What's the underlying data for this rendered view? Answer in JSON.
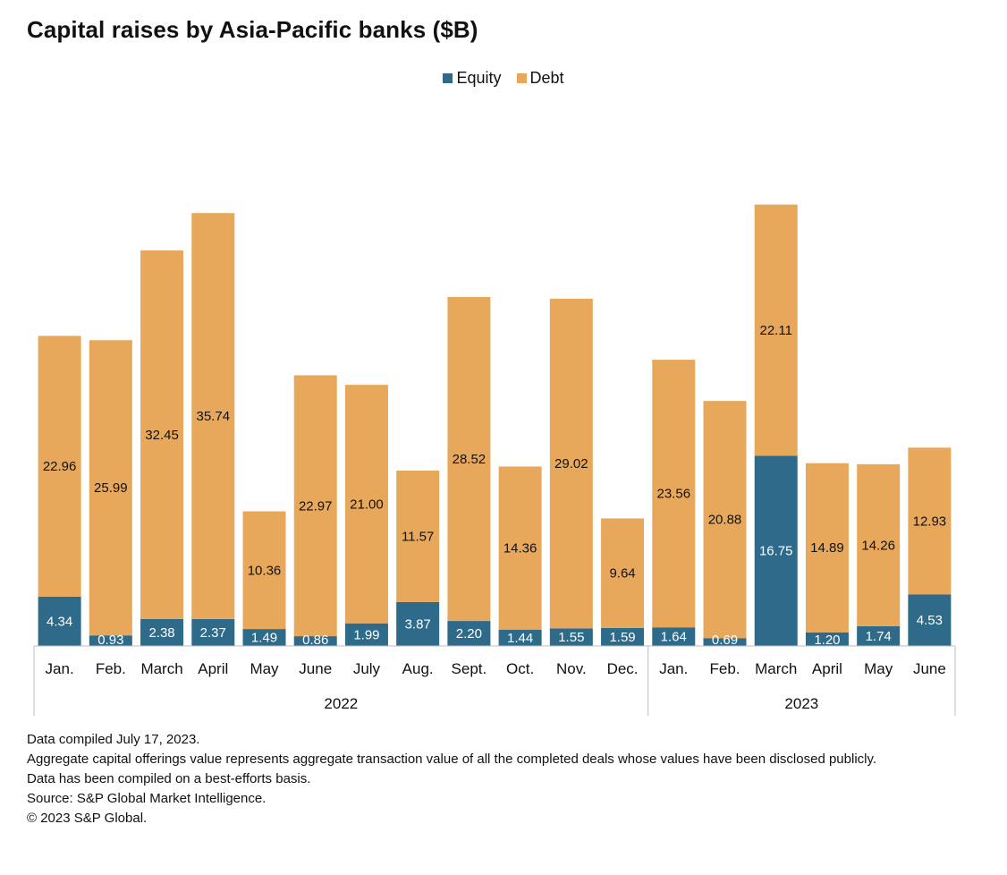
{
  "chart_data": {
    "type": "bar",
    "stacked": true,
    "title": "Capital raises by Asia-Pacific banks ($B)",
    "xlabel": "",
    "ylabel": "",
    "ylim": [
      0,
      46
    ],
    "grid": false,
    "legend_position": "top-center",
    "categories": [
      "Jan.",
      "Feb.",
      "March",
      "April",
      "May",
      "June",
      "July",
      "Aug.",
      "Sept.",
      "Oct.",
      "Nov.",
      "Dec.",
      "Jan.",
      "Feb.",
      "March",
      "April",
      "May",
      "June"
    ],
    "groups": [
      {
        "label": "2022",
        "count": 12
      },
      {
        "label": "2023",
        "count": 6
      }
    ],
    "series": [
      {
        "name": "Equity",
        "color": "#2e6a8a",
        "values": [
          4.34,
          0.93,
          2.38,
          2.37,
          1.49,
          0.86,
          1.99,
          3.87,
          2.2,
          1.44,
          1.55,
          1.59,
          1.64,
          0.69,
          16.75,
          1.2,
          1.74,
          4.53
        ],
        "labels": [
          "4.34",
          "0.93",
          "2.38",
          "2.37",
          "1.49",
          "0.86",
          "1.99",
          "3.87",
          "2.20",
          "1.44",
          "1.55",
          "1.59",
          "1.64",
          "0.69",
          "16.75",
          "1.20",
          "1.74",
          "4.53"
        ]
      },
      {
        "name": "Debt",
        "color": "#e8a85c",
        "values": [
          22.96,
          25.99,
          32.45,
          35.74,
          10.36,
          22.97,
          21.0,
          11.57,
          28.52,
          14.36,
          29.02,
          9.64,
          23.56,
          20.88,
          22.11,
          14.89,
          14.26,
          12.93
        ],
        "labels": [
          "22.96",
          "25.99",
          "32.45",
          "35.74",
          "10.36",
          "22.97",
          "21.00",
          "11.57",
          "28.52",
          "14.36",
          "29.02",
          "9.64",
          "23.56",
          "20.88",
          "22.11",
          "14.89",
          "14.26",
          "12.93"
        ]
      }
    ]
  },
  "notes": {
    "compiled": "Data compiled July 17, 2023.",
    "aggregate": "Aggregate capital offerings value represents aggregate transaction value of all the completed deals whose values have been disclosed publicly.",
    "basis": "Data has been compiled on a best-efforts basis.",
    "source": "Source: S&P Global Market Intelligence.",
    "copyright": "© 2023 S&P Global."
  }
}
